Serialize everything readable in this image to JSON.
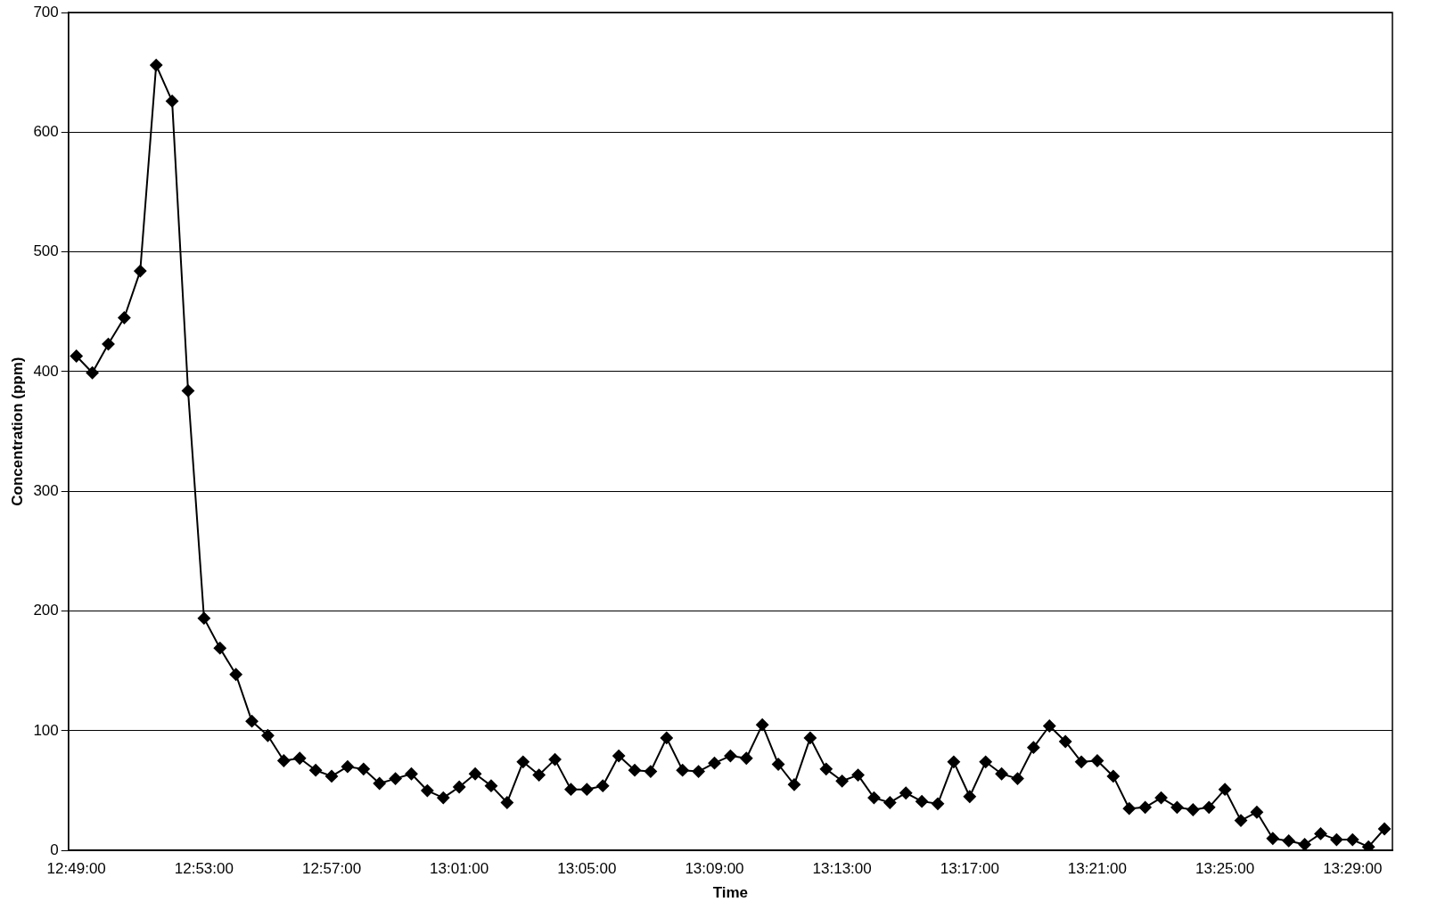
{
  "chart_data": {
    "type": "line",
    "xlabel": "Time",
    "ylabel": "Concentration (ppm)",
    "categories": [
      "12:49:00",
      null,
      null,
      null,
      null,
      null,
      null,
      null,
      "12:53:00",
      null,
      null,
      null,
      null,
      null,
      null,
      null,
      "12:57:00",
      null,
      null,
      null,
      null,
      null,
      null,
      null,
      "13:01:00",
      null,
      null,
      null,
      null,
      null,
      null,
      null,
      "13:05:00",
      null,
      null,
      null,
      null,
      null,
      null,
      null,
      "13:09:00",
      null,
      null,
      null,
      null,
      null,
      null,
      null,
      "13:13:00",
      null,
      null,
      null,
      null,
      null,
      null,
      null,
      "13:17:00",
      null,
      null,
      null,
      null,
      null,
      null,
      null,
      "13:21:00",
      null,
      null,
      null,
      null,
      null,
      null,
      null,
      "13:25:00",
      null,
      null,
      null,
      null,
      null,
      null,
      null,
      "13:29:00",
      null,
      null
    ],
    "series": [
      {
        "color": "#000000",
        "values": [
          413,
          399,
          423,
          445,
          484,
          656,
          626,
          384,
          194,
          169,
          147,
          108,
          96,
          75,
          77,
          67,
          62,
          70,
          68,
          56,
          60,
          64,
          50,
          44,
          53,
          64,
          54,
          40,
          74,
          63,
          76,
          51,
          51,
          54,
          79,
          67,
          66,
          94,
          67,
          66,
          73,
          79,
          77,
          105,
          72,
          55,
          94,
          68,
          58,
          63,
          44,
          40,
          48,
          41,
          39,
          74,
          45,
          74,
          64,
          60,
          86,
          104,
          91,
          74,
          75,
          62,
          35,
          36,
          44,
          36,
          34,
          36,
          51,
          25,
          32,
          10,
          8,
          5,
          14,
          9,
          9,
          3,
          18
        ]
      }
    ],
    "ylim": [
      0,
      700
    ],
    "yticks": [
      0,
      100,
      200,
      300,
      400,
      500,
      600,
      700
    ],
    "grid": "y",
    "marker": "diamond",
    "line_style": "solid"
  }
}
